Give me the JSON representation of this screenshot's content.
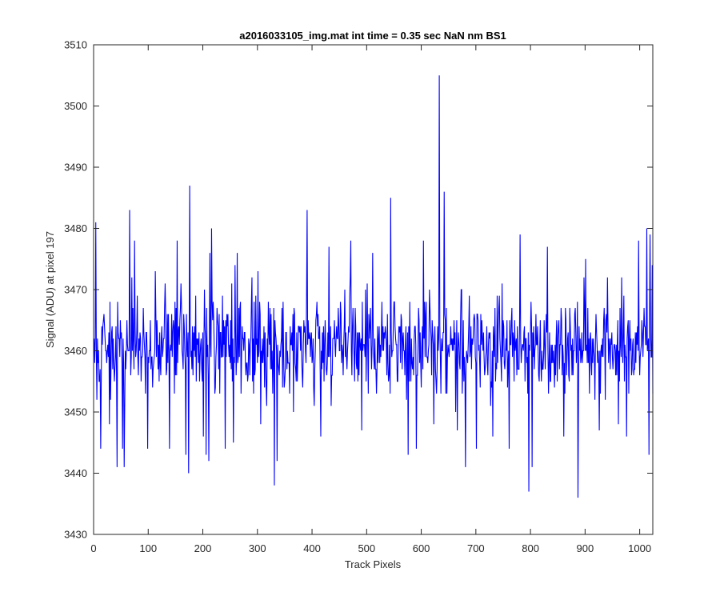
{
  "chart_data": {
    "type": "line",
    "title": "a2016033105_img.mat int time = 0.35 sec  NaN nm BS1",
    "xlabel": "Track Pixels",
    "ylabel": "Signal (ADU) at pixel 197",
    "xlim": [
      0,
      1024
    ],
    "ylim": [
      3430,
      3510
    ],
    "xticks": [
      0,
      100,
      200,
      300,
      400,
      500,
      600,
      700,
      800,
      900,
      1000
    ],
    "yticks": [
      3430,
      3440,
      3450,
      3460,
      3470,
      3480,
      3490,
      3500,
      3510
    ],
    "grid": false,
    "series": [
      {
        "color": "#0000ff",
        "baseline": 3461,
        "n_points": 1024,
        "extremes": [
          {
            "x": 1,
            "y": 3458
          },
          {
            "x": 3,
            "y": 3481
          },
          {
            "x": 5,
            "y": 3452
          },
          {
            "x": 8,
            "y": 3460
          },
          {
            "x": 12,
            "y": 3444
          },
          {
            "x": 28,
            "y": 3448
          },
          {
            "x": 42,
            "y": 3441
          },
          {
            "x": 52,
            "y": 3444
          },
          {
            "x": 55,
            "y": 3441
          },
          {
            "x": 65,
            "y": 3483
          },
          {
            "x": 74,
            "y": 3478
          },
          {
            "x": 98,
            "y": 3444
          },
          {
            "x": 112,
            "y": 3473
          },
          {
            "x": 130,
            "y": 3471
          },
          {
            "x": 138,
            "y": 3444
          },
          {
            "x": 152,
            "y": 3478
          },
          {
            "x": 168,
            "y": 3443
          },
          {
            "x": 173,
            "y": 3440
          },
          {
            "x": 175,
            "y": 3487
          },
          {
            "x": 200,
            "y": 3446
          },
          {
            "x": 205,
            "y": 3443
          },
          {
            "x": 210,
            "y": 3442
          },
          {
            "x": 212,
            "y": 3476
          },
          {
            "x": 215,
            "y": 3480
          },
          {
            "x": 240,
            "y": 3444
          },
          {
            "x": 255,
            "y": 3445
          },
          {
            "x": 258,
            "y": 3474
          },
          {
            "x": 262,
            "y": 3476
          },
          {
            "x": 300,
            "y": 3473
          },
          {
            "x": 305,
            "y": 3448
          },
          {
            "x": 330,
            "y": 3438
          },
          {
            "x": 335,
            "y": 3442
          },
          {
            "x": 365,
            "y": 3450
          },
          {
            "x": 390,
            "y": 3483
          },
          {
            "x": 415,
            "y": 3446
          },
          {
            "x": 430,
            "y": 3477
          },
          {
            "x": 470,
            "y": 3478
          },
          {
            "x": 490,
            "y": 3447
          },
          {
            "x": 500,
            "y": 3471
          },
          {
            "x": 510,
            "y": 3476
          },
          {
            "x": 543,
            "y": 3485
          },
          {
            "x": 575,
            "y": 3443
          },
          {
            "x": 590,
            "y": 3444
          },
          {
            "x": 603,
            "y": 3478
          },
          {
            "x": 622,
            "y": 3448
          },
          {
            "x": 632,
            "y": 3505
          },
          {
            "x": 641,
            "y": 3486
          },
          {
            "x": 665,
            "y": 3447
          },
          {
            "x": 680,
            "y": 3441
          },
          {
            "x": 700,
            "y": 3444
          },
          {
            "x": 730,
            "y": 3446
          },
          {
            "x": 760,
            "y": 3444
          },
          {
            "x": 780,
            "y": 3479
          },
          {
            "x": 796,
            "y": 3437
          },
          {
            "x": 802,
            "y": 3441
          },
          {
            "x": 830,
            "y": 3477
          },
          {
            "x": 860,
            "y": 3446
          },
          {
            "x": 886,
            "y": 3436
          },
          {
            "x": 900,
            "y": 3475
          },
          {
            "x": 925,
            "y": 3447
          },
          {
            "x": 940,
            "y": 3472
          },
          {
            "x": 960,
            "y": 3448
          },
          {
            "x": 975,
            "y": 3446
          },
          {
            "x": 997,
            "y": 3478
          },
          {
            "x": 1012,
            "y": 3480
          },
          {
            "x": 1016,
            "y": 3443
          },
          {
            "x": 1018,
            "y": 3479
          },
          {
            "x": 1022,
            "y": 3474
          }
        ]
      }
    ]
  }
}
